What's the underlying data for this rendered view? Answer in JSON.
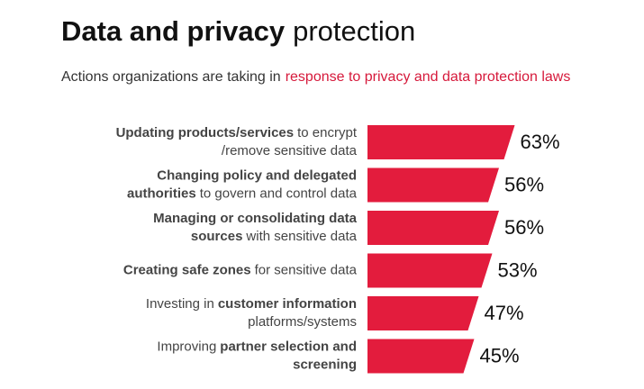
{
  "chart_data": {
    "type": "bar",
    "orientation": "horizontal",
    "title": [
      "Data and privacy",
      "protection"
    ],
    "subtitle": [
      "Actions organizations are taking in",
      "response to privacy and data protection laws"
    ],
    "categories": [
      [
        [
          {
            "text": "Updating products/services",
            "bold": true
          },
          {
            "text": "to encrypt",
            "bold": false
          }
        ],
        [
          {
            "text": "/remove sensitive data",
            "bold": false
          }
        ]
      ],
      [
        [
          {
            "text": "Changing policy and delegated",
            "bold": true
          }
        ],
        [
          {
            "text": "authorities",
            "bold": true
          },
          {
            "text": "to govern and control data",
            "bold": false
          }
        ]
      ],
      [
        [
          {
            "text": "Managing or consolidating data",
            "bold": true
          }
        ],
        [
          {
            "text": "sources",
            "bold": true
          },
          {
            "text": "with sensitive data",
            "bold": false
          }
        ]
      ],
      [
        [
          {
            "text": "Creating safe zones",
            "bold": true
          },
          {
            "text": "for sensitive data",
            "bold": false
          }
        ]
      ],
      [
        [
          {
            "text": "Investing in",
            "bold": false
          },
          {
            "text": "customer information",
            "bold": true
          }
        ],
        [
          {
            "text": "platforms/systems",
            "bold": false
          }
        ]
      ],
      [
        [
          {
            "text": "Improving",
            "bold": false
          },
          {
            "text": "partner selection and",
            "bold": true
          }
        ],
        [
          {
            "text": "screening",
            "bold": true
          }
        ]
      ]
    ],
    "values": [
      63,
      56,
      56,
      53,
      47,
      45
    ],
    "value_labels": [
      "63%",
      "56%",
      "56%",
      "53%",
      "47%",
      "45%"
    ],
    "color": "#e31c3d",
    "highlight_color": "#d6193b",
    "xlim": [
      0,
      100
    ]
  }
}
